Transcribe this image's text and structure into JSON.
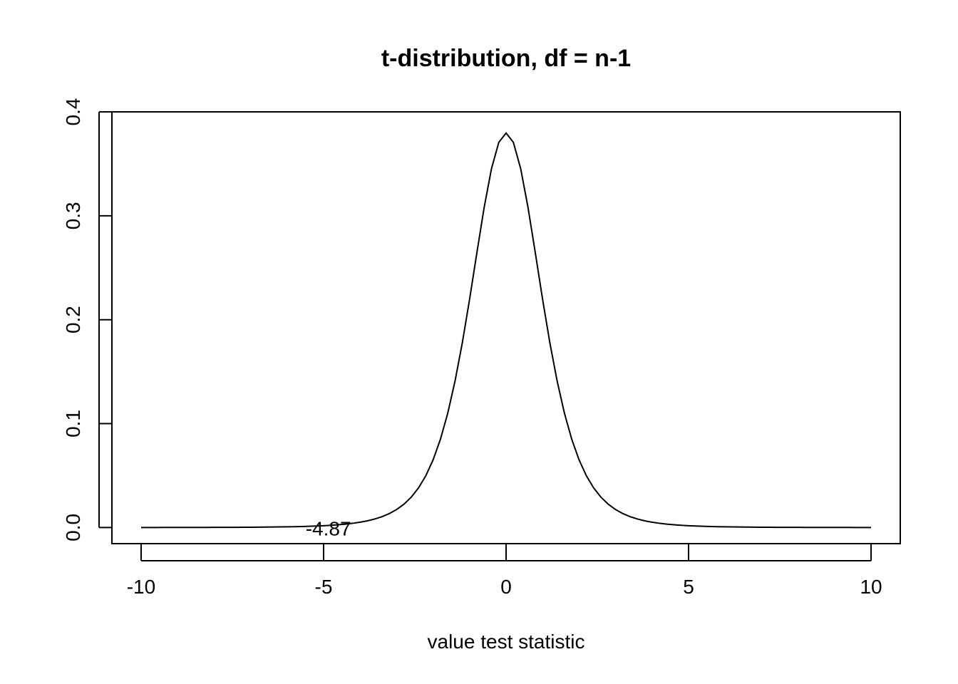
{
  "chart_data": {
    "type": "line",
    "title": "t-distribution, df = n-1",
    "xlabel": "value test statistic",
    "ylabel": "",
    "xlim": [
      -10.8,
      10.8
    ],
    "ylim": [
      -0.0155,
      0.4
    ],
    "x_ticks": [
      {
        "value": -10,
        "label": "-10"
      },
      {
        "value": -5,
        "label": "-5"
      },
      {
        "value": 0,
        "label": "0"
      },
      {
        "value": 5,
        "label": "5"
      },
      {
        "value": 10,
        "label": "10"
      }
    ],
    "y_ticks": [
      {
        "value": 0.0,
        "label": "0.0"
      },
      {
        "value": 0.1,
        "label": "0.1"
      },
      {
        "value": 0.2,
        "label": "0.2"
      },
      {
        "value": 0.3,
        "label": "0.3"
      },
      {
        "value": 0.4,
        "label": "0.4"
      }
    ],
    "grid": false,
    "series": [
      {
        "color": "#000000",
        "distribution": "student-t",
        "df": 5,
        "x_from": -10,
        "x_to": 10,
        "step": 0.2
      }
    ],
    "annotations": [
      {
        "x": -4.87,
        "y": 0.0,
        "text": "-4.87"
      }
    ]
  }
}
